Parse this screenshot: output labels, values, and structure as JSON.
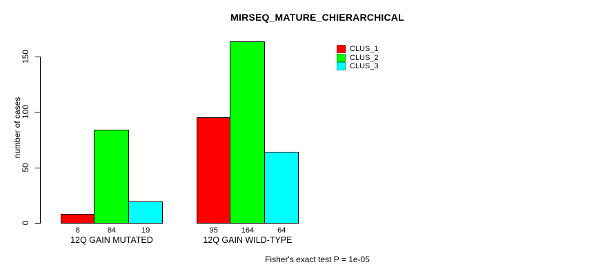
{
  "chart_data": {
    "type": "bar",
    "title": "MIRSEQ_MATURE_CHIERARCHICAL",
    "categories": [
      "12Q GAIN MUTATED",
      "12Q GAIN WILD-TYPE"
    ],
    "series": [
      {
        "name": "CLUS_1",
        "color": "#ff0000",
        "values": [
          8,
          95
        ]
      },
      {
        "name": "CLUS_2",
        "color": "#00ff00",
        "values": [
          84,
          164
        ]
      },
      {
        "name": "CLUS_3",
        "color": "#00ffff",
        "values": [
          19,
          64
        ]
      }
    ],
    "xlabel": "",
    "ylabel": "number of cases",
    "yticks": [
      0,
      50,
      100,
      150
    ],
    "ylim": [
      0,
      165
    ],
    "grid": false,
    "bar_value_labels": [
      [
        8,
        84,
        19
      ],
      [
        95,
        164,
        64
      ]
    ],
    "legend_position": "top-right",
    "legend_entries": [
      "CLUS_1",
      "CLUS_2",
      "CLUS_3"
    ],
    "annotation": "Fisher's exact test P = 1e-05",
    "colors": {
      "clus_1": "#ff0000",
      "clus_2": "#00ff00",
      "clus_3": "#00ffff",
      "foreground": "#000000",
      "background": "#ffffff"
    }
  }
}
